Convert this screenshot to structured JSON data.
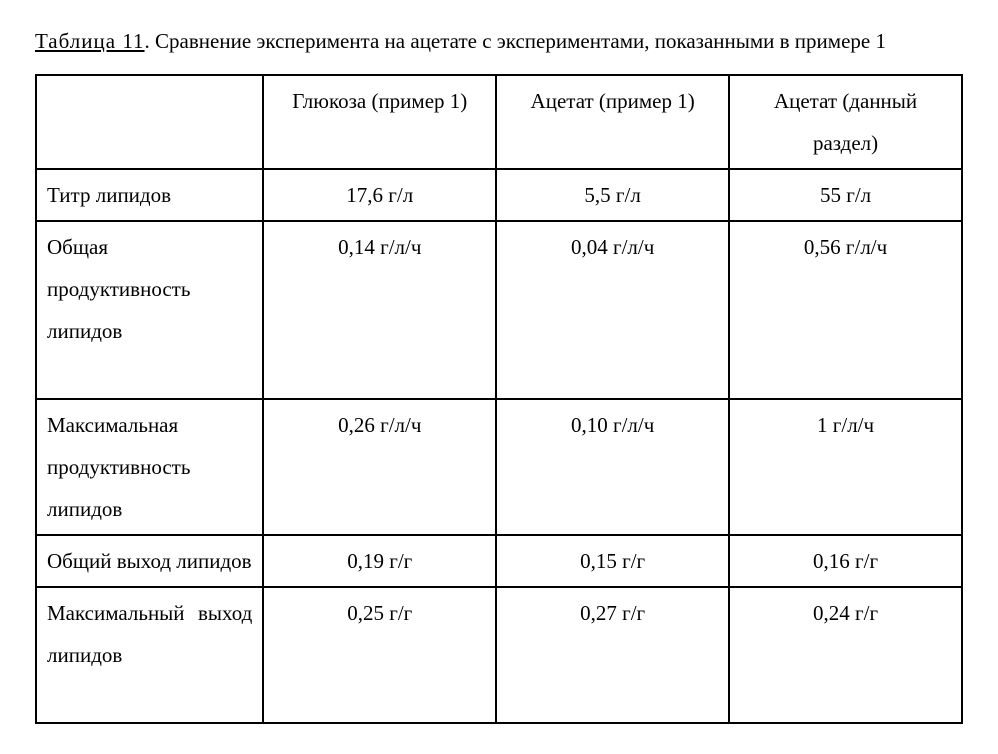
{
  "caption": {
    "label": "Таблица 11",
    "text": ". Сравнение эксперимента на ацетате с экспериментами, показанными в примере 1"
  },
  "table": {
    "columns": [
      "",
      "Глюкоза (пример 1)",
      "Ацетат (пример 1)",
      "Ацетат (данный раздел)"
    ],
    "rows": [
      {
        "label": "Титр липидов",
        "justify": false,
        "cells": [
          "17,6 г/л",
          "5,5 г/л",
          "55 г/л"
        ]
      },
      {
        "label": "Общая продуктивность липидов",
        "justify": true,
        "cells": [
          "0,14 г/л/ч",
          "0,04 г/л/ч",
          "0,56 г/л/ч"
        ]
      },
      {
        "label": "Максимальная продуктивность липидов",
        "justify": false,
        "cells": [
          "0,26 г/л/ч",
          "0,10 г/л/ч",
          "1 г/л/ч"
        ]
      },
      {
        "label": "Общий выход липидов",
        "justify": false,
        "cells": [
          "0,19 г/г",
          "0,15 г/г",
          "0,16 г/г"
        ]
      },
      {
        "label": "Максимальный выход липидов",
        "justify": true,
        "cells": [
          "0,25 г/г",
          "0,27 г/г",
          "0,24 г/г"
        ]
      }
    ]
  }
}
